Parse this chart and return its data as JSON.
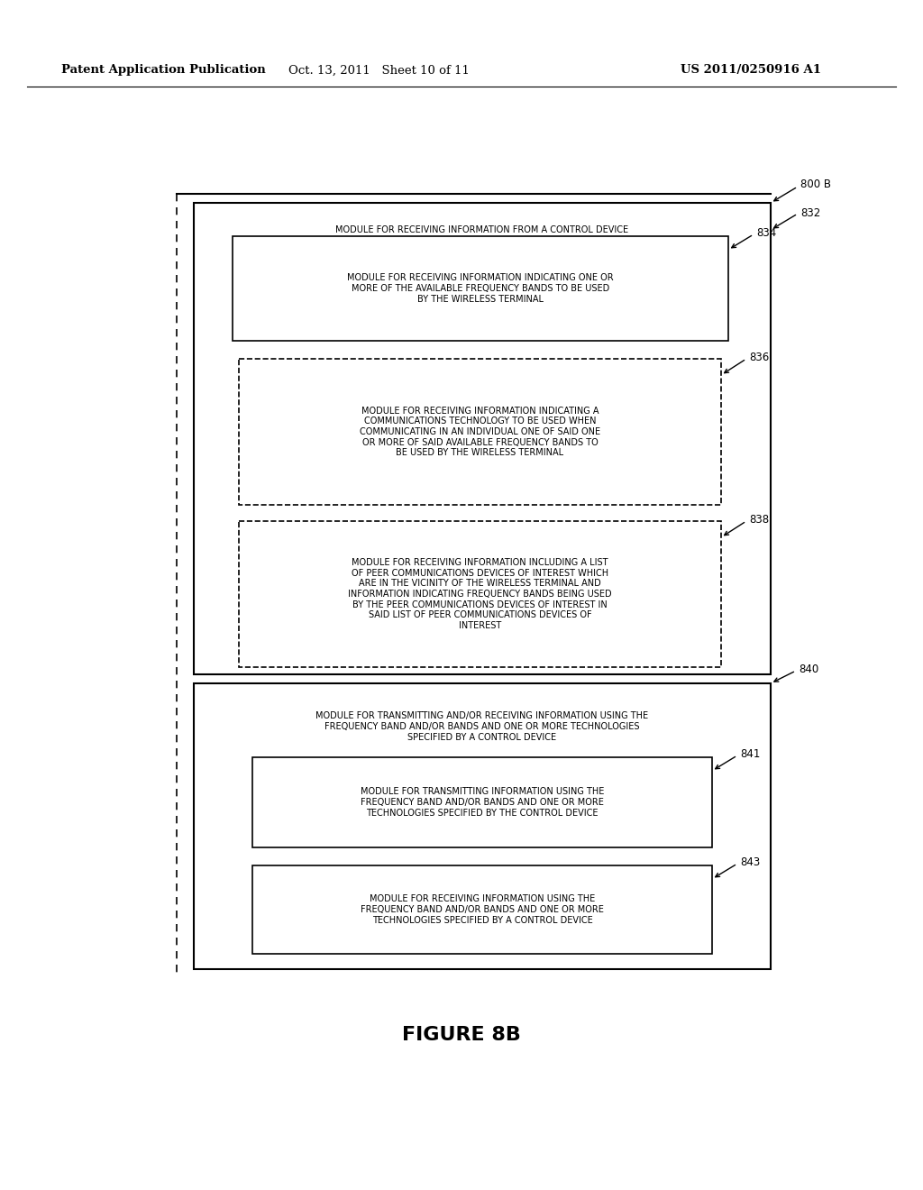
{
  "header_left": "Patent Application Publication",
  "header_mid": "Oct. 13, 2011   Sheet 10 of 11",
  "header_right": "US 2011/0250916 A1",
  "figure_label": "FIGURE 8B",
  "diagram_label": "800 B",
  "box832_label": "832",
  "box832_title": "MODULE FOR RECEIVING INFORMATION FROM A CONTROL DEVICE",
  "box834_label": "834",
  "box834_text": "MODULE FOR RECEIVING INFORMATION INDICATING ONE OR\nMORE OF THE AVAILABLE FREQUENCY BANDS TO BE USED\nBY THE WIRELESS TERMINAL",
  "box836_label": "836",
  "box836_text": "MODULE FOR RECEIVING INFORMATION INDICATING A\nCOMMUNICATIONS TECHNOLOGY TO BE USED WHEN\nCOMMUNICATING IN AN INDIVIDUAL ONE OF SAID ONE\nOR MORE OF SAID AVAILABLE FREQUENCY BANDS TO\nBE USED BY THE WIRELESS TERMINAL",
  "box838_label": "838",
  "box838_text": "MODULE FOR RECEIVING INFORMATION INCLUDING A LIST\nOF PEER COMMUNICATIONS DEVICES OF INTEREST WHICH\nARE IN THE VICINITY OF THE WIRELESS TERMINAL AND\nINFORMATION INDICATING FREQUENCY BANDS BEING USED\nBY THE PEER COMMUNICATIONS DEVICES OF INTEREST IN\nSAID LIST OF PEER COMMUNICATIONS DEVICES OF\nINTEREST",
  "box840_label": "840",
  "box840_text": "MODULE FOR TRANSMITTING AND/OR RECEIVING INFORMATION USING THE\nFREQUENCY BAND AND/OR BANDS AND ONE OR MORE TECHNOLOGIES\nSPECIFIED BY A CONTROL DEVICE",
  "box841_label": "841",
  "box841_text": "MODULE FOR TRANSMITTING INFORMATION USING THE\nFREQUENCY BAND AND/OR BANDS AND ONE OR MORE\nTECHNOLOGIES SPECIFIED BY THE CONTROL DEVICE",
  "box843_label": "843",
  "box843_text": "MODULE FOR RECEIVING INFORMATION USING THE\nFREQUENCY BAND AND/OR BANDS AND ONE OR MORE\nTECHNOLOGIES SPECIFIED BY A CONTROL DEVICE",
  "bg_color": "#ffffff",
  "text_color": "#000000",
  "line_color": "#000000"
}
